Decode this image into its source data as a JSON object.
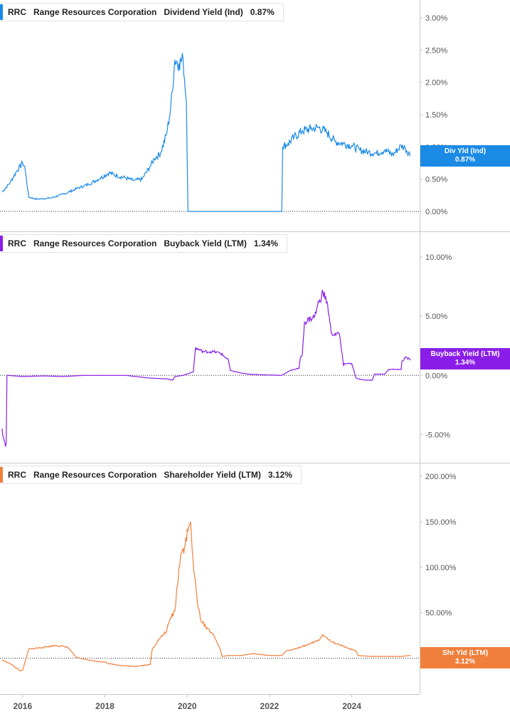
{
  "panels": [
    {
      "ticker": "RRC",
      "company": "Range Resources Corporation",
      "metric": "Dividend Yield (Ind)",
      "value": "0.87%",
      "flag_label": "Div Yld (Ind)",
      "flag_value": "0.87%",
      "color": "#1a8ae5"
    },
    {
      "ticker": "RRC",
      "company": "Range Resources Corporation",
      "metric": "Buyback Yield (LTM)",
      "value": "1.34%",
      "flag_label": "Buyback Yield (LTM)",
      "flag_value": "1.34%",
      "color": "#8a1ee8"
    },
    {
      "ticker": "RRC",
      "company": "Range Resources Corporation",
      "metric": "Shareholder Yield (LTM)",
      "value": "3.12%",
      "flag_label": "Shr Yld (LTM)",
      "flag_value": "3.12%",
      "color": "#f07f3c"
    }
  ],
  "chart_data": [
    {
      "type": "line",
      "title": "RRC Range Resources Corporation Dividend Yield (Ind) 0.87%",
      "series": [
        {
          "name": "Dividend Yield (Ind)",
          "x": [
            2015.5,
            2015.7,
            2015.85,
            2016.0,
            2016.05,
            2016.15,
            2016.35,
            2016.7,
            2017.0,
            2017.3,
            2017.6,
            2017.9,
            2018.1,
            2018.3,
            2018.5,
            2018.7,
            2018.9,
            2019.1,
            2019.2,
            2019.35,
            2019.5,
            2019.6,
            2019.7,
            2019.8,
            2019.9,
            2019.98,
            2020.02,
            2020.3,
            2021.0,
            2021.8,
            2022.3,
            2022.32,
            2022.45,
            2022.6,
            2022.8,
            2023.0,
            2023.2,
            2023.4,
            2023.6,
            2023.8,
            2024.0,
            2024.2,
            2024.4,
            2024.6,
            2024.8,
            2025.0,
            2025.2,
            2025.3,
            2025.43
          ],
          "values": [
            0.3,
            0.45,
            0.62,
            0.75,
            0.7,
            0.22,
            0.19,
            0.21,
            0.27,
            0.35,
            0.42,
            0.52,
            0.6,
            0.55,
            0.52,
            0.48,
            0.5,
            0.7,
            0.82,
            0.9,
            1.2,
            1.6,
            2.35,
            2.3,
            2.35,
            1.7,
            0.0,
            0.0,
            0.0,
            0.0,
            0.0,
            1.0,
            1.05,
            1.15,
            1.25,
            1.28,
            1.3,
            1.22,
            1.08,
            1.05,
            1.02,
            0.95,
            0.92,
            0.9,
            0.95,
            0.88,
            1.02,
            0.98,
            0.87
          ]
        }
      ],
      "ylim": [
        0.0,
        3.0
      ],
      "ytick_labels": [
        "0.00%",
        "0.50%",
        "1.00%",
        "1.50%",
        "2.00%",
        "2.50%",
        "3.00%"
      ],
      "xlim": [
        2015.45,
        2025.65
      ]
    },
    {
      "type": "line",
      "title": "RRC Range Resources Corporation Buyback Yield (LTM) 1.34%",
      "series": [
        {
          "name": "Buyback Yield (LTM)",
          "x": [
            2015.5,
            2015.55,
            2015.6,
            2015.62,
            2016.0,
            2016.5,
            2017.0,
            2017.5,
            2018.0,
            2018.5,
            2019.0,
            2019.5,
            2019.65,
            2019.7,
            2019.9,
            2020.15,
            2020.18,
            2020.2,
            2020.4,
            2020.6,
            2020.8,
            2021.0,
            2021.05,
            2021.3,
            2021.5,
            2021.8,
            2022.3,
            2022.32,
            2022.5,
            2022.6,
            2022.72,
            2022.75,
            2022.8,
            2022.85,
            2023.0,
            2023.1,
            2023.2,
            2023.3,
            2023.4,
            2023.5,
            2023.52,
            2023.7,
            2023.8,
            2023.82,
            2024.0,
            2024.1,
            2024.15,
            2024.3,
            2024.5,
            2024.55,
            2024.8,
            2024.9,
            2025.1,
            2025.2,
            2025.22,
            2025.3,
            2025.43
          ],
          "values": [
            -4.5,
            -5.5,
            -5.8,
            0.0,
            -0.1,
            -0.05,
            -0.1,
            0.0,
            0.0,
            0.0,
            -0.2,
            -0.3,
            -0.4,
            -0.1,
            0.0,
            0.3,
            1.5,
            2.3,
            2.0,
            2.0,
            1.9,
            1.3,
            0.4,
            0.2,
            0.1,
            0.05,
            0.0,
            0.05,
            0.4,
            0.5,
            0.6,
            1.5,
            1.8,
            4.5,
            4.8,
            5.0,
            6.2,
            7.0,
            6.2,
            3.6,
            3.5,
            3.5,
            0.8,
            1.0,
            1.0,
            -0.2,
            -0.3,
            -0.4,
            -0.4,
            0.1,
            0.1,
            0.5,
            0.5,
            0.5,
            1.2,
            1.5,
            1.34
          ]
        }
      ],
      "ylim": [
        -6.0,
        10.0
      ],
      "ytick_labels": [
        "-5.00%",
        "0.00%",
        "5.00%",
        "10.00%"
      ],
      "xlim": [
        2015.45,
        2025.65
      ]
    },
    {
      "type": "line",
      "title": "RRC Range Resources Corporation Shareholder Yield (LTM) 3.12%",
      "series": [
        {
          "name": "Shareholder Yield (LTM)",
          "x": [
            2015.5,
            2015.7,
            2015.95,
            2016.0,
            2016.15,
            2016.5,
            2016.8,
            2017.0,
            2017.1,
            2017.3,
            2017.6,
            2017.9,
            2018.0,
            2018.1,
            2018.4,
            2018.7,
            2018.9,
            2019.1,
            2019.15,
            2019.3,
            2019.5,
            2019.6,
            2019.7,
            2019.8,
            2019.85,
            2019.95,
            2020.02,
            2020.08,
            2020.12,
            2020.18,
            2020.25,
            2020.35,
            2020.45,
            2020.6,
            2020.7,
            2020.8,
            2020.85,
            2021.0,
            2021.3,
            2021.6,
            2021.8,
            2022.0,
            2022.3,
            2022.4,
            2022.6,
            2022.8,
            2023.0,
            2023.2,
            2023.3,
            2023.5,
            2023.7,
            2023.9,
            2024.1,
            2024.15,
            2024.5,
            2024.8,
            2025.0,
            2025.2,
            2025.43
          ],
          "values": [
            -2,
            -6,
            -14,
            -13,
            10,
            12,
            14,
            13,
            12,
            1,
            -2,
            -4,
            -4,
            -6,
            -8,
            -9,
            -8,
            -7,
            10,
            20,
            30,
            45,
            52,
            100,
            115,
            125,
            140,
            150,
            120,
            90,
            60,
            40,
            35,
            28,
            20,
            10,
            2,
            3,
            3,
            5,
            4,
            3,
            3,
            8,
            10,
            13,
            16,
            20,
            26,
            18,
            15,
            11,
            8,
            3,
            2,
            2,
            2,
            2,
            3.12
          ]
        }
      ],
      "ylim": [
        -30,
        200
      ],
      "ytick_labels": [
        "0.00%",
        "50.00%",
        "100.00%",
        "150.00%",
        "200.00%"
      ],
      "xlim": [
        2015.45,
        2025.65
      ]
    }
  ],
  "xaxis": {
    "tick_labels": [
      "2016",
      "2018",
      "2020",
      "2022",
      "2024"
    ],
    "tick_values": [
      2016,
      2018,
      2020,
      2022,
      2024
    ]
  }
}
